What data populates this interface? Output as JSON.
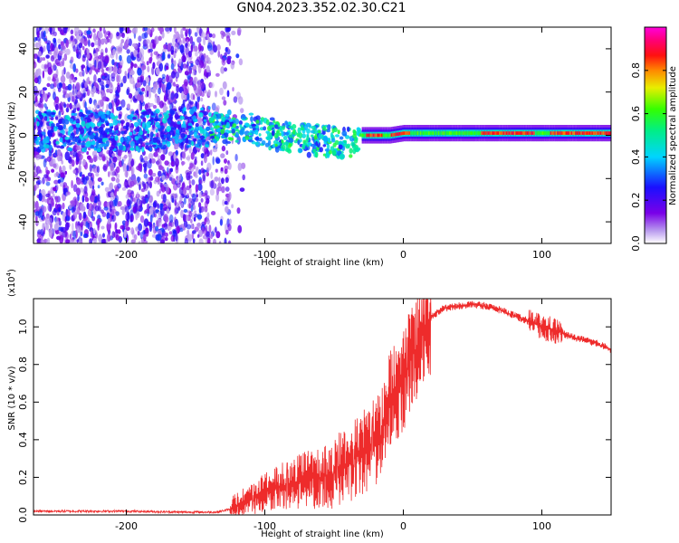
{
  "title": "GN04.2023.352.02.30.C21",
  "colors": {
    "snr_line": "#ee2b2b",
    "frame": "#000000"
  },
  "chart_data": [
    {
      "type": "heatmap",
      "title": "",
      "xlabel": "Height of straight line (km)",
      "ylabel": "Frequency (Hz)",
      "xlim": [
        -267,
        150
      ],
      "ylim": [
        -50,
        50
      ],
      "x_ticks": [
        -200,
        -100,
        0,
        100
      ],
      "y_ticks": [
        -40,
        -20,
        0,
        20,
        40
      ],
      "colorbar": {
        "label": "Normalized spectral amplitude",
        "range": [
          0,
          1
        ],
        "ticks": [
          "0.0",
          "0.2",
          "0.4",
          "0.6",
          "0.8"
        ],
        "colormap": "rainbow (purple-blue-cyan-green-yellow-orange-red-magenta)"
      },
      "dominant_frequency_track": {
        "x": [
          -267,
          -200,
          -135,
          -110,
          -90,
          -70,
          -50,
          -35,
          -30,
          -10,
          0,
          20,
          50,
          80,
          100,
          150
        ],
        "y": [
          2,
          2,
          4,
          3,
          0,
          -2,
          -3,
          -3,
          0,
          0,
          1,
          1,
          1,
          1,
          1,
          1
        ]
      }
    },
    {
      "type": "line",
      "title": "",
      "xlabel": "Height of straight line (km)",
      "ylabel": "SNR (10 * v/v)",
      "y_multiplier_label": "(x10",
      "y_multiplier_exp": "4",
      "y_multiplier_close": ")",
      "xlim": [
        -267,
        150
      ],
      "ylim": [
        0,
        1.15
      ],
      "x_ticks": [
        -200,
        -100,
        0,
        100
      ],
      "y_ticks": [
        "0.0",
        "0.2",
        "0.4",
        "0.6",
        "0.8",
        "1.0"
      ],
      "series": [
        {
          "x": [
            -267,
            -240,
            -200,
            -160,
            -135,
            -125,
            -118,
            -110,
            -100,
            -90,
            -80,
            -70,
            -60,
            -50,
            -45,
            -40,
            -35,
            -30,
            -25,
            -20,
            -15,
            -12,
            -10,
            -5,
            0,
            5,
            10,
            15,
            20,
            25,
            30,
            40,
            50,
            60,
            70,
            80,
            90,
            100,
            110,
            120,
            130,
            140,
            150
          ],
          "values": [
            0.02,
            0.02,
            0.02,
            0.015,
            0.015,
            0.03,
            0.06,
            0.08,
            0.12,
            0.15,
            0.17,
            0.19,
            0.2,
            0.22,
            0.24,
            0.27,
            0.3,
            0.33,
            0.36,
            0.38,
            0.43,
            0.55,
            0.62,
            0.65,
            0.72,
            0.82,
            0.9,
            0.98,
            1.05,
            1.08,
            1.1,
            1.11,
            1.12,
            1.11,
            1.09,
            1.06,
            1.03,
            1.0,
            0.98,
            0.95,
            0.93,
            0.91,
            0.88
          ]
        }
      ]
    }
  ]
}
